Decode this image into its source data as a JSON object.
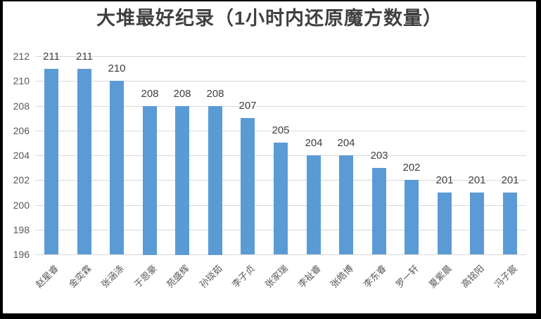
{
  "window": {
    "border_color": "#000000",
    "background_color": "#ffffff"
  },
  "chart_data": {
    "type": "bar",
    "title": "大堆最好纪录（1小时内还原魔方数量）",
    "categories": [
      "赵星睿",
      "金奕霖",
      "张涵涤",
      "于恩豪",
      "苑盛辉",
      "孙琰茹",
      "李子贞",
      "张家瑞",
      "李祉睿",
      "张皓博",
      "李东睿",
      "罗一轩",
      "夏紫晨",
      "高铭阳",
      "冯子宸"
    ],
    "values": [
      211,
      211,
      210,
      208,
      208,
      208,
      207,
      205,
      204,
      204,
      203,
      202,
      201,
      201,
      201
    ],
    "yticks": [
      212,
      210,
      208,
      206,
      204,
      202,
      200,
      198,
      196
    ],
    "ylim": [
      196,
      212
    ],
    "xlabel": "",
    "ylabel": "",
    "grid": true,
    "legend": "none",
    "data_labels": true,
    "category_label_rotation_deg": 45,
    "bar_color": "#5b9bd5",
    "gridline_color": "#d9d9d9",
    "title_color": "#3f3f3f",
    "data_label_color": "#404040",
    "tick_label_color": "#595959"
  }
}
